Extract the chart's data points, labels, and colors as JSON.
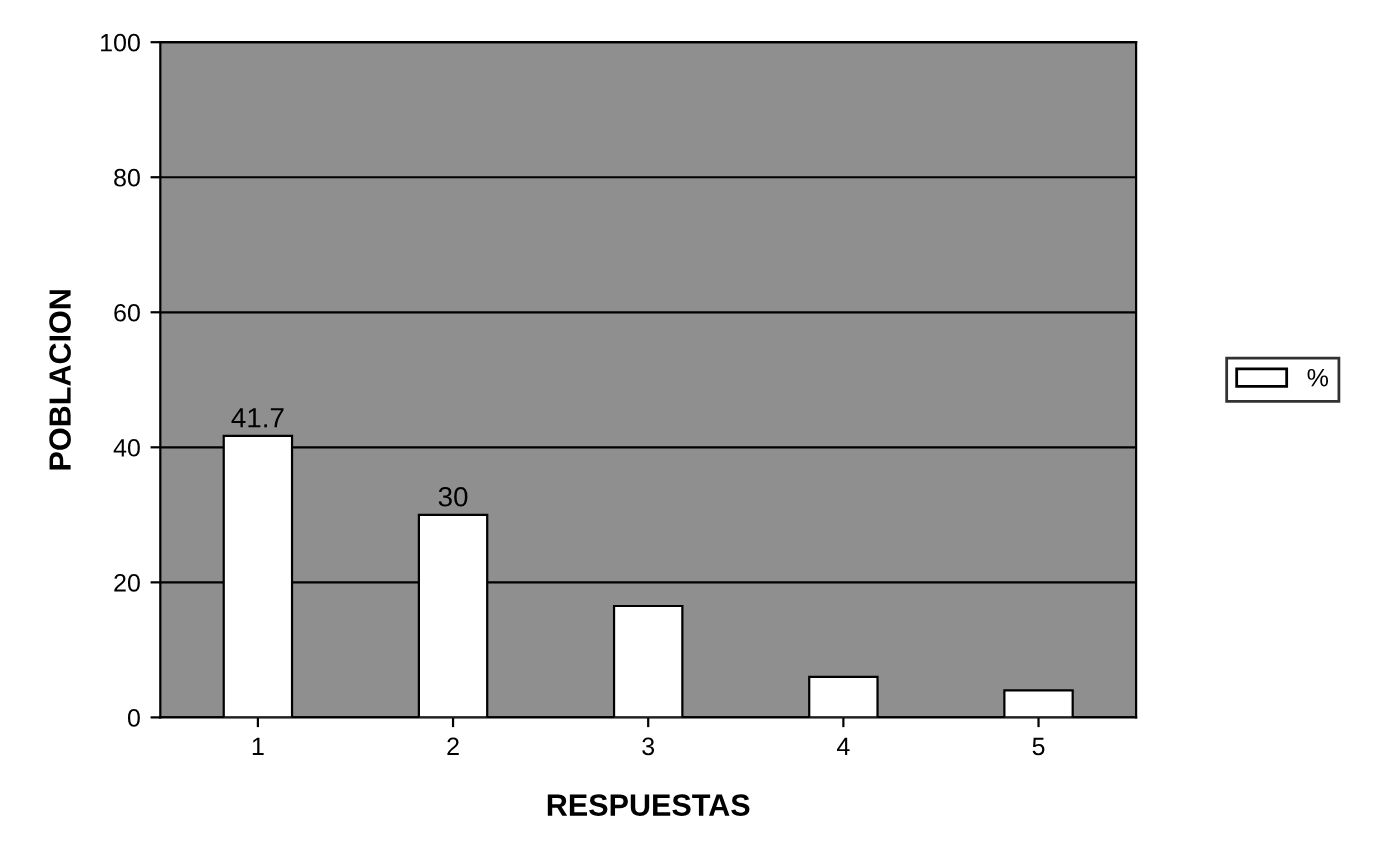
{
  "chart_data": {
    "type": "bar",
    "xlabel": "RESPUESTAS",
    "ylabel": "POBLACION",
    "categories": [
      "1",
      "2",
      "3",
      "4",
      "5"
    ],
    "series": [
      {
        "name": "%",
        "color": "#ffffff",
        "values": [
          41.7,
          30,
          16.5,
          6,
          4
        ],
        "value_labels": [
          "41.7",
          "30",
          null,
          null,
          null
        ]
      }
    ],
    "ylim": [
      0,
      100
    ],
    "yticks": [
      0,
      20,
      40,
      60,
      80,
      100
    ],
    "grid": "y",
    "legend": "right"
  }
}
